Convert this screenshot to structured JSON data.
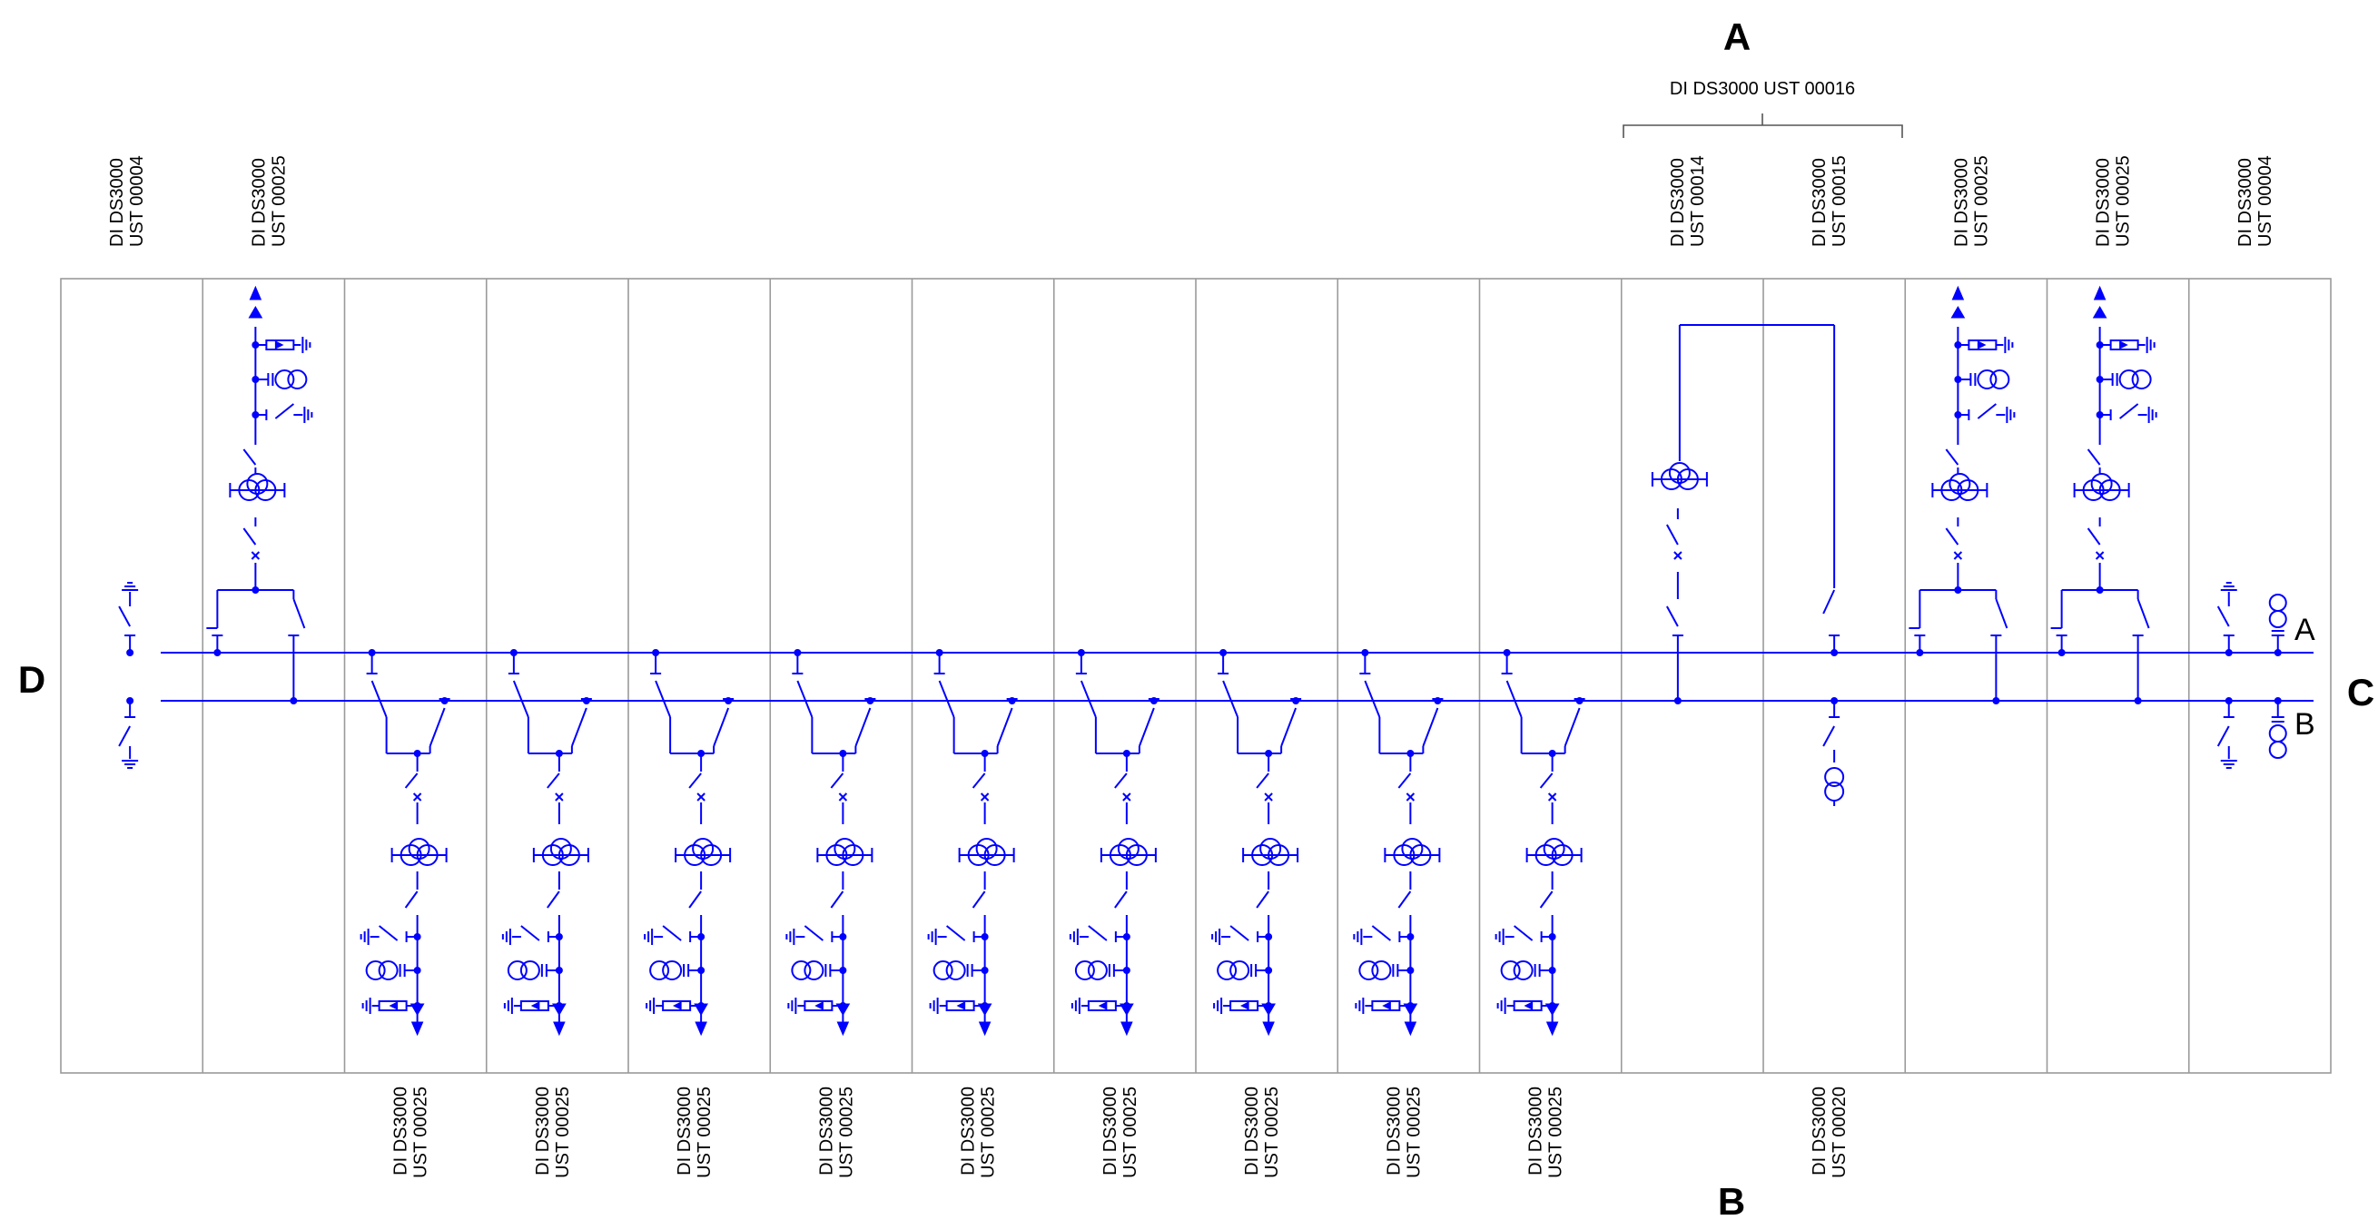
{
  "colors": {
    "wire": "#0000ff",
    "frame": "#9a9a9a",
    "text": "#000000"
  },
  "edge_labels": {
    "top": "A",
    "bottom": "B",
    "right": "C",
    "left": "D"
  },
  "busbars": {
    "upper": "A",
    "lower": "B"
  },
  "group": {
    "label": "DI DS3000 UST 00016"
  },
  "panels": [
    {
      "id": "p1",
      "type": "bus-earthing",
      "top_label": [
        "DI DS3000",
        "UST 00004"
      ],
      "bottom_label": null
    },
    {
      "id": "p2",
      "type": "feeder-up",
      "top_label": [
        "DI DS3000",
        "UST 00025"
      ],
      "bottom_label": null
    },
    {
      "id": "p3",
      "type": "feeder-down",
      "top_label": null,
      "bottom_label": [
        "DI DS3000",
        "UST 00025"
      ]
    },
    {
      "id": "p4",
      "type": "feeder-down",
      "top_label": null,
      "bottom_label": [
        "DI DS3000",
        "UST 00025"
      ]
    },
    {
      "id": "p5",
      "type": "feeder-down",
      "top_label": null,
      "bottom_label": [
        "DI DS3000",
        "UST 00025"
      ]
    },
    {
      "id": "p6",
      "type": "feeder-down",
      "top_label": null,
      "bottom_label": [
        "DI DS3000",
        "UST 00025"
      ]
    },
    {
      "id": "p7",
      "type": "feeder-down",
      "top_label": null,
      "bottom_label": [
        "DI DS3000",
        "UST 00025"
      ]
    },
    {
      "id": "p8",
      "type": "feeder-down",
      "top_label": null,
      "bottom_label": [
        "DI DS3000",
        "UST 00025"
      ]
    },
    {
      "id": "p9",
      "type": "feeder-down",
      "top_label": null,
      "bottom_label": [
        "DI DS3000",
        "UST 00025"
      ]
    },
    {
      "id": "p10",
      "type": "feeder-down",
      "top_label": null,
      "bottom_label": [
        "DI DS3000",
        "UST 00025"
      ]
    },
    {
      "id": "p11",
      "type": "feeder-down",
      "top_label": null,
      "bottom_label": [
        "DI DS3000",
        "UST 00025"
      ]
    },
    {
      "id": "p12",
      "type": "coupler-a",
      "top_label": [
        "DI DS3000",
        "UST 00014"
      ],
      "bottom_label": null
    },
    {
      "id": "p13",
      "type": "coupler-b",
      "top_label": [
        "DI DS3000",
        "UST 00015"
      ],
      "bottom_label": [
        "DI DS3000",
        "UST 00020"
      ]
    },
    {
      "id": "p14",
      "type": "feeder-up",
      "top_label": [
        "DI DS3000",
        "UST 00025"
      ],
      "bottom_label": null
    },
    {
      "id": "p15",
      "type": "feeder-up",
      "top_label": [
        "DI DS3000",
        "UST 00025"
      ],
      "bottom_label": null
    },
    {
      "id": "p16",
      "type": "bus-metering",
      "top_label": [
        "DI DS3000",
        "UST 00004"
      ],
      "bottom_label": null
    }
  ]
}
